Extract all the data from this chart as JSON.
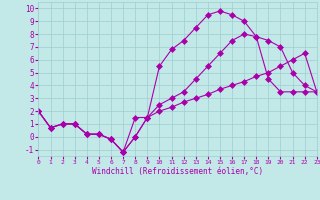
{
  "xlabel": "Windchill (Refroidissement éolien,°C)",
  "bg_color": "#c2e8e8",
  "grid_color": "#9ecece",
  "line_color": "#aa00aa",
  "xlim": [
    0,
    23
  ],
  "ylim": [
    -1.5,
    10.5
  ],
  "xticks": [
    0,
    1,
    2,
    3,
    4,
    5,
    6,
    7,
    8,
    9,
    10,
    11,
    12,
    13,
    14,
    15,
    16,
    17,
    18,
    19,
    20,
    21,
    22,
    23
  ],
  "yticks": [
    -1,
    0,
    1,
    2,
    3,
    4,
    5,
    6,
    7,
    8,
    9,
    10
  ],
  "line1_x": [
    0,
    1,
    2,
    3,
    4,
    5,
    6,
    7,
    8,
    9,
    10,
    11,
    12,
    13,
    14,
    15,
    16,
    17,
    18,
    19,
    20,
    21,
    22,
    23
  ],
  "line1_y": [
    2.0,
    0.7,
    1.0,
    1.0,
    0.2,
    0.2,
    -0.2,
    -1.2,
    0.0,
    1.5,
    2.0,
    2.3,
    2.7,
    3.0,
    3.3,
    3.7,
    4.0,
    4.3,
    4.7,
    5.0,
    5.5,
    6.0,
    6.5,
    3.5
  ],
  "line2_x": [
    0,
    1,
    2,
    3,
    4,
    5,
    6,
    7,
    8,
    9,
    10,
    11,
    12,
    13,
    14,
    15,
    16,
    17,
    18,
    19,
    20,
    21,
    22,
    23
  ],
  "line2_y": [
    2.0,
    0.7,
    1.0,
    1.0,
    0.2,
    0.2,
    -0.2,
    -1.2,
    0.0,
    1.5,
    5.5,
    6.8,
    7.5,
    8.5,
    9.5,
    9.8,
    9.5,
    9.0,
    7.8,
    4.5,
    3.5,
    3.5,
    3.5,
    3.5
  ],
  "line3_x": [
    0,
    1,
    2,
    3,
    4,
    5,
    6,
    7,
    8,
    9,
    10,
    11,
    12,
    13,
    14,
    15,
    16,
    17,
    18,
    19,
    20,
    21,
    22,
    23
  ],
  "line3_y": [
    2.0,
    0.7,
    1.0,
    1.0,
    0.2,
    0.2,
    -0.2,
    -1.2,
    1.5,
    1.5,
    2.5,
    3.0,
    3.5,
    4.5,
    5.5,
    6.5,
    7.5,
    8.0,
    7.8,
    7.5,
    7.0,
    5.0,
    4.0,
    3.5
  ]
}
